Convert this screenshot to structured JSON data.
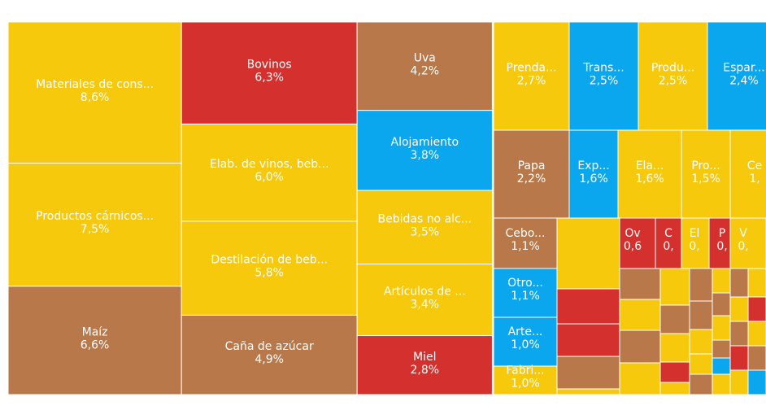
{
  "chart_data": {
    "type": "treemap",
    "cells": [
      {
        "name": "Materiales de cons...",
        "value": 8.6,
        "value_label": "8,6%",
        "color": "#f7c90c"
      },
      {
        "name": "Productos cárnicos...",
        "value": 7.5,
        "value_label": "7,5%",
        "color": "#f7c90c"
      },
      {
        "name": "Maíz",
        "value": 6.6,
        "value_label": "6,6%",
        "color": "#b8784a"
      },
      {
        "name": "Bovinos",
        "value": 6.3,
        "value_label": "6,3%",
        "color": "#d3302e"
      },
      {
        "name": "Elab. de vinos, beb...",
        "value": 6.0,
        "value_label": "6,0%",
        "color": "#f7c90c"
      },
      {
        "name": "Destilación de beb...",
        "value": 5.8,
        "value_label": "5,8%",
        "color": "#f7c90c"
      },
      {
        "name": "Caña de azúcar",
        "value": 4.9,
        "value_label": "4,9%",
        "color": "#b8784a"
      },
      {
        "name": "Uva",
        "value": 4.2,
        "value_label": "4,2%",
        "color": "#b8784a"
      },
      {
        "name": "Alojamiento",
        "value": 3.8,
        "value_label": "3,8%",
        "color": "#0aa6ee"
      },
      {
        "name": "Bebidas no alc...",
        "value": 3.5,
        "value_label": "3,5%",
        "color": "#f7c90c"
      },
      {
        "name": "Artículos de ...",
        "value": 3.4,
        "value_label": "3,4%",
        "color": "#f7c90c"
      },
      {
        "name": "Miel",
        "value": 2.8,
        "value_label": "2,8%",
        "color": "#d3302e"
      },
      {
        "name": "Prenda...",
        "value": 2.7,
        "value_label": "2,7%",
        "color": "#f7c90c"
      },
      {
        "name": "Trans...",
        "value": 2.5,
        "value_label": "2,5%",
        "color": "#0aa6ee"
      },
      {
        "name": "Produ...",
        "value": 2.5,
        "value_label": "2,5%",
        "color": "#f7c90c"
      },
      {
        "name": "Espar...",
        "value": 2.4,
        "value_label": "2,4%",
        "color": "#0aa6ee"
      },
      {
        "name": "Papa",
        "value": 2.2,
        "value_label": "2,2%",
        "color": "#b8784a"
      },
      {
        "name": "Exp...",
        "value": 1.6,
        "value_label": "1,6%",
        "color": "#0aa6ee"
      },
      {
        "name": "Ela...",
        "value": 1.6,
        "value_label": "1,6%",
        "color": "#f7c90c"
      },
      {
        "name": "Pro...",
        "value": 1.5,
        "value_label": "1,5%",
        "color": "#f7c90c"
      },
      {
        "name": "Ce",
        "value": 1.4,
        "value_label": "1,",
        "color": "#f7c90c"
      },
      {
        "name": "Cebo...",
        "value": 1.1,
        "value_label": "1,1%",
        "color": "#b8784a"
      },
      {
        "name": "Otro...",
        "value": 1.1,
        "value_label": "1,1%",
        "color": "#0aa6ee"
      },
      {
        "name": "Arte...",
        "value": 1.0,
        "value_label": "1,0%",
        "color": "#0aa6ee"
      },
      {
        "name": "Fabri...",
        "value": 1.0,
        "value_label": "1,0%",
        "color": "#f7c90c"
      },
      {
        "name": "Ov",
        "value": 0.6,
        "value_label": "0,6",
        "color": "#d3302e"
      },
      {
        "name": "C",
        "value": 0.5,
        "value_label": "0,",
        "color": "#d3302e"
      },
      {
        "name": "El",
        "value": 0.5,
        "value_label": "0,",
        "color": "#f7c90c"
      },
      {
        "name": "P",
        "value": 0.4,
        "value_label": "0,",
        "color": "#d3302e"
      },
      {
        "name": "V",
        "value": 0.5,
        "value_label": "0,",
        "color": "#f7c90c"
      }
    ]
  }
}
